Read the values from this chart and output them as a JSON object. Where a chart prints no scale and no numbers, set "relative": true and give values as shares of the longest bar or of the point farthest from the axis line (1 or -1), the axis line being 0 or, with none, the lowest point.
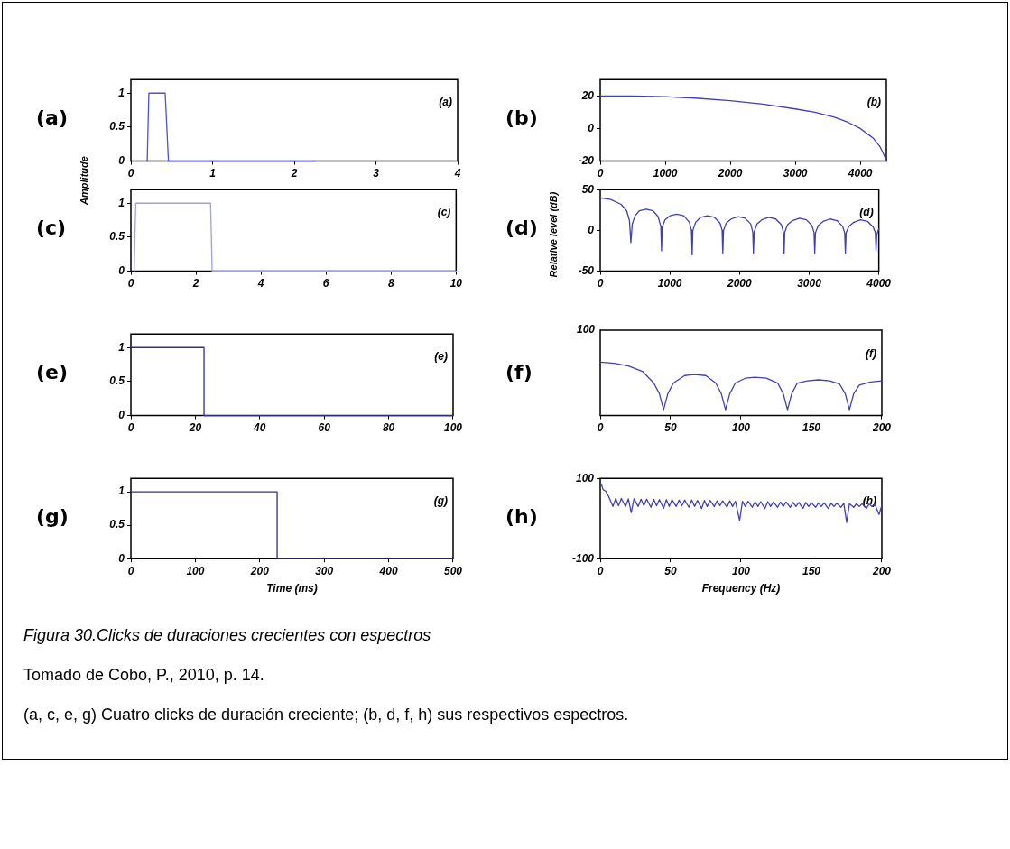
{
  "chart_data": [
    {
      "type": "line",
      "title": "(a)",
      "annotations": [
        "(a)"
      ],
      "x": [
        0.2,
        0.22,
        0.42,
        0.46,
        2.25
      ],
      "series": [
        {
          "color": "#5050d0",
          "values": [
            0,
            1,
            1,
            0,
            0
          ]
        }
      ],
      "xlim": [
        0,
        4
      ],
      "ylim": [
        0,
        1.2
      ],
      "xticks": [
        0,
        1,
        2,
        3,
        4
      ],
      "yticks": [
        0,
        0.5,
        1
      ]
    },
    {
      "type": "line",
      "title": "(b)",
      "annotations": [
        "(b)"
      ],
      "x": [
        0,
        500,
        1000,
        1500,
        2000,
        2500,
        3000,
        3300,
        3600,
        3800,
        4000,
        4100,
        4200,
        4300,
        4350,
        4400
      ],
      "series": [
        {
          "color": "#4040b0",
          "values": [
            20,
            20,
            19.5,
            18.5,
            17,
            15,
            12,
            10,
            7,
            4,
            0,
            -3,
            -6,
            -11,
            -15,
            -20
          ]
        }
      ],
      "xlim": [
        0,
        4400
      ],
      "ylim": [
        -20,
        30
      ],
      "xticks": [
        0,
        1000,
        2000,
        3000,
        4000
      ],
      "yticks": [
        -20,
        0,
        20
      ]
    },
    {
      "type": "line",
      "title": "(c)",
      "ylabel": "Amplitude",
      "annotations": [
        "(c)"
      ],
      "x": [
        0.1,
        0.15,
        2.45,
        2.5,
        10
      ],
      "series": [
        {
          "color": "#a0a0e0",
          "values": [
            0,
            1,
            1,
            0,
            0
          ]
        }
      ],
      "xlim": [
        0,
        10
      ],
      "ylim": [
        0,
        1.2
      ],
      "xticks": [
        0,
        2,
        4,
        6,
        8,
        10
      ],
      "yticks": [
        0,
        0.5,
        1
      ]
    },
    {
      "type": "line",
      "title": "(d)",
      "ylabel": "Relative level (dB)",
      "annotations": [
        "(d)"
      ],
      "x": [
        0,
        150,
        300,
        380,
        420,
        440,
        460,
        500,
        560,
        660,
        760,
        830,
        870,
        880,
        890,
        930,
        1000,
        1100,
        1200,
        1280,
        1310,
        1320,
        1330,
        1370,
        1440,
        1540,
        1640,
        1720,
        1750,
        1760,
        1770,
        1810,
        1880,
        1980,
        2080,
        2160,
        2190,
        2200,
        2210,
        2250,
        2320,
        2420,
        2520,
        2600,
        2630,
        2640,
        2650,
        2690,
        2760,
        2860,
        2960,
        3040,
        3070,
        3080,
        3090,
        3130,
        3200,
        3300,
        3400,
        3480,
        3510,
        3520,
        3530,
        3570,
        3640,
        3740,
        3840,
        3920,
        3950,
        3960,
        3970,
        4000
      ],
      "series": [
        {
          "color": "#4040b0",
          "values": [
            40,
            38,
            32,
            24,
            12,
            -15,
            8,
            18,
            24,
            26,
            24,
            17,
            5,
            -25,
            4,
            13,
            18,
            20,
            18,
            10,
            0,
            -30,
            0,
            10,
            16,
            18,
            16,
            9,
            0,
            -28,
            0,
            9,
            14,
            17,
            15,
            8,
            -2,
            -28,
            -2,
            8,
            13,
            16,
            14,
            7,
            -2,
            -28,
            -2,
            7,
            12,
            15,
            13,
            6,
            -3,
            -28,
            -3,
            6,
            11,
            14,
            12,
            5,
            -3,
            -28,
            -3,
            5,
            10,
            13,
            11,
            4,
            -3,
            -25,
            -5,
            2
          ]
        }
      ],
      "xlim": [
        0,
        4000
      ],
      "ylim": [
        -50,
        50
      ],
      "xticks": [
        0,
        1000,
        2000,
        3000,
        4000
      ],
      "yticks": [
        -50,
        0,
        50
      ]
    },
    {
      "type": "line",
      "title": "(e)",
      "annotations": [
        "(e)"
      ],
      "x": [
        0,
        22.7,
        22.7,
        100
      ],
      "series": [
        {
          "color": "#303080",
          "values": [
            1,
            1,
            0,
            0
          ]
        }
      ],
      "xlim": [
        0,
        100
      ],
      "ylim": [
        0,
        1.2
      ],
      "xticks": [
        0,
        20,
        40,
        60,
        80,
        100
      ],
      "yticks": [
        0,
        0.5,
        1
      ]
    },
    {
      "type": "line",
      "title": "(f)",
      "annotations": [
        "(f)",
        "100"
      ],
      "relative": true,
      "x": [
        0,
        10,
        20,
        30,
        38,
        42,
        45,
        48,
        52,
        60,
        67,
        75,
        82,
        86,
        89,
        92,
        96,
        103,
        110,
        118,
        126,
        130,
        133,
        136,
        140,
        147,
        155,
        163,
        170,
        174,
        177,
        180,
        184,
        192,
        200
      ],
      "series": [
        {
          "color": "#4040b0",
          "values": [
            1,
            0.98,
            0.93,
            0.83,
            0.61,
            0.41,
            0.11,
            0.41,
            0.61,
            0.75,
            0.77,
            0.75,
            0.61,
            0.41,
            0.11,
            0.41,
            0.61,
            0.7,
            0.72,
            0.7,
            0.61,
            0.41,
            0.11,
            0.41,
            0.61,
            0.65,
            0.67,
            0.65,
            0.59,
            0.41,
            0.11,
            0.41,
            0.57,
            0.63,
            0.65
          ]
        }
      ],
      "xlim": [
        0,
        200
      ],
      "xticks": [
        0,
        50,
        100,
        150,
        200
      ]
    },
    {
      "type": "line",
      "title": "(g)",
      "xlabel": "Time (ms)",
      "annotations": [
        "(g)"
      ],
      "x": [
        0,
        227,
        227,
        500
      ],
      "series": [
        {
          "color": "#303080",
          "values": [
            1,
            1,
            0,
            0
          ]
        }
      ],
      "xlim": [
        0,
        500
      ],
      "ylim": [
        0,
        1.2
      ],
      "xticks": [
        0,
        100,
        200,
        300,
        400,
        500
      ],
      "yticks": [
        0,
        0.5,
        1
      ]
    },
    {
      "type": "line",
      "title": "(h)",
      "xlabel": "Frequency (Hz)",
      "annotations": [
        "(h)"
      ],
      "x": [
        0,
        1,
        2,
        4,
        6,
        9,
        11,
        13,
        15,
        18,
        20,
        22,
        24,
        27,
        29,
        31,
        33,
        36,
        38,
        40,
        42,
        45,
        47,
        49,
        51,
        54,
        56,
        58,
        60,
        63,
        65,
        67,
        69,
        72,
        74,
        76,
        78,
        81,
        83,
        85,
        87,
        90,
        92,
        94,
        96,
        99,
        101,
        103,
        105,
        108,
        110,
        112,
        114,
        117,
        119,
        121,
        123,
        126,
        128,
        130,
        132,
        135,
        137,
        139,
        141,
        144,
        146,
        148,
        150,
        153,
        155,
        157,
        159,
        162,
        164,
        166,
        168,
        171,
        173,
        175,
        177,
        180,
        182,
        184,
        186,
        189,
        191,
        193,
        195,
        198,
        200
      ],
      "series": [
        {
          "color": "#4040b0",
          "values": [
            85,
            84,
            72,
            68,
            55,
            30,
            50,
            32,
            50,
            30,
            49,
            15,
            49,
            30,
            48,
            32,
            48,
            28,
            48,
            32,
            47,
            25,
            47,
            30,
            47,
            30,
            46,
            32,
            46,
            28,
            46,
            30,
            45,
            25,
            45,
            30,
            45,
            30,
            44,
            32,
            44,
            28,
            44,
            30,
            43,
            -5,
            43,
            30,
            43,
            28,
            42,
            30,
            42,
            25,
            42,
            30,
            41,
            28,
            41,
            30,
            41,
            28,
            40,
            30,
            40,
            25,
            40,
            30,
            39,
            28,
            39,
            30,
            39,
            25,
            38,
            30,
            38,
            28,
            38,
            -10,
            37,
            28,
            37,
            30,
            37,
            25,
            36,
            30,
            36,
            10,
            33
          ]
        }
      ],
      "xlim": [
        0,
        200
      ],
      "ylim": [
        -100,
        100
      ],
      "xticks": [
        0,
        50,
        100,
        150,
        200
      ],
      "yticks": [
        -100,
        100
      ]
    },
    {
      "type": "other",
      "annotations": [
        "Figura 30.Clicks de duraciones crecientes con espectros",
        "Tomado de Cobo, P., 2010, p. 14.",
        " (a, c, e, g) Cuatro clicks de duración creciente; (b, d, f, h) sus respectivos espectros."
      ]
    }
  ]
}
